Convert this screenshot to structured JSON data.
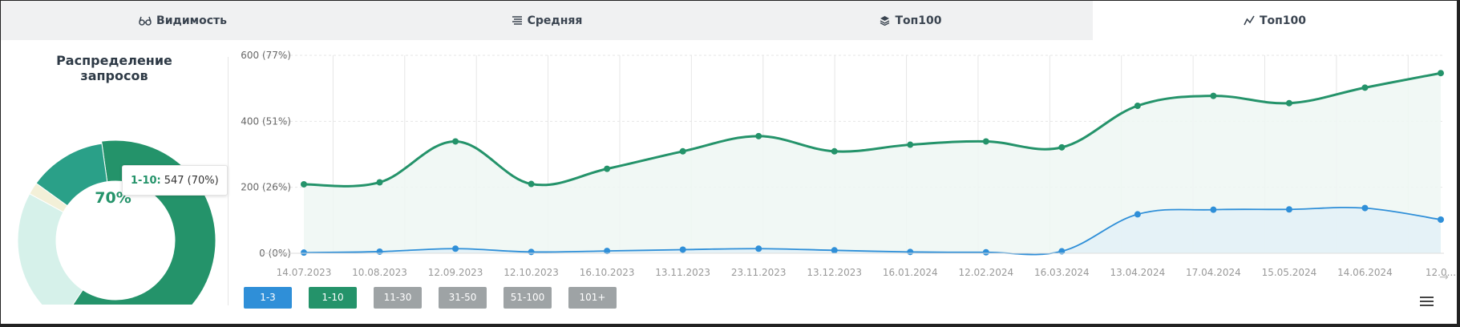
{
  "tabs": [
    {
      "label": "Видимость",
      "icon": "glasses-icon",
      "active": false
    },
    {
      "label": "Средняя",
      "icon": "list-lines-icon",
      "active": false
    },
    {
      "label": "Топ100",
      "icon": "layers-icon",
      "active": false
    },
    {
      "label": "Топ100",
      "icon": "trend-icon",
      "active": true
    }
  ],
  "distribution": {
    "title_line1": "Распределение",
    "title_line2": "запросов",
    "center_label": "70%",
    "tooltip_key": "1-10:",
    "tooltip_value": "547 (70%)",
    "segments": [
      {
        "name": "1-3",
        "value": 114,
        "color": "#2aa088"
      },
      {
        "name": "1-10",
        "value": 547,
        "color": "#24936a"
      },
      {
        "name": "11-30",
        "value": 210,
        "color": "#d6f1ea"
      },
      {
        "name": "31-50",
        "value": 18,
        "color": "#f3f0d8"
      }
    ]
  },
  "range_buttons": [
    {
      "label": "1-3",
      "color": "#2f8fd8"
    },
    {
      "label": "1-10",
      "color": "#24936a"
    },
    {
      "label": "11-30",
      "color": "#9ea3a5"
    },
    {
      "label": "31-50",
      "color": "#9ea3a5"
    },
    {
      "label": "51-100",
      "color": "#9ea3a5"
    },
    {
      "label": "101+",
      "color": "#9ea3a5"
    }
  ],
  "chart_data": {
    "type": "area",
    "y_tick_labels": [
      "0 (0%)",
      "200 (26%)",
      "400 (51%)",
      "600 (77%)"
    ],
    "y_ticks": [
      0,
      200,
      400,
      600
    ],
    "ylim": [
      0,
      600
    ],
    "x_tick_labels": [
      "14.07.2023",
      "10.08.2023",
      "12.09.2023",
      "12.10.2023",
      "16.10.2023",
      "13.11.2023",
      "23.11.2023",
      "13.12.2023",
      "16.01.2024",
      "12.02.2024",
      "16.03.2024",
      "13.04.2024",
      "17.04.2024",
      "15.05.2024",
      "14.06.2024",
      "12.0..."
    ],
    "grid": true,
    "series": [
      {
        "color": "#24936a",
        "fill": "#eef7f3",
        "x": [
          0,
          1,
          2,
          3,
          4,
          5,
          6,
          7,
          8,
          9,
          10,
          11,
          12,
          13,
          14,
          15
        ],
        "values": [
          209,
          215,
          339,
          210,
          256,
          309,
          355,
          309,
          329,
          339,
          321,
          447,
          477,
          455,
          502,
          546
        ]
      },
      {
        "color": "#2f8fd8",
        "fill": "#e3f1f7",
        "x": [
          0,
          1,
          2,
          3,
          4,
          5,
          6,
          7,
          8,
          9,
          10,
          11,
          12,
          13,
          14,
          15
        ],
        "values": [
          2,
          5,
          14,
          4,
          7,
          11,
          14,
          9,
          4,
          3,
          6,
          118,
          132,
          133,
          137,
          102
        ]
      }
    ]
  }
}
